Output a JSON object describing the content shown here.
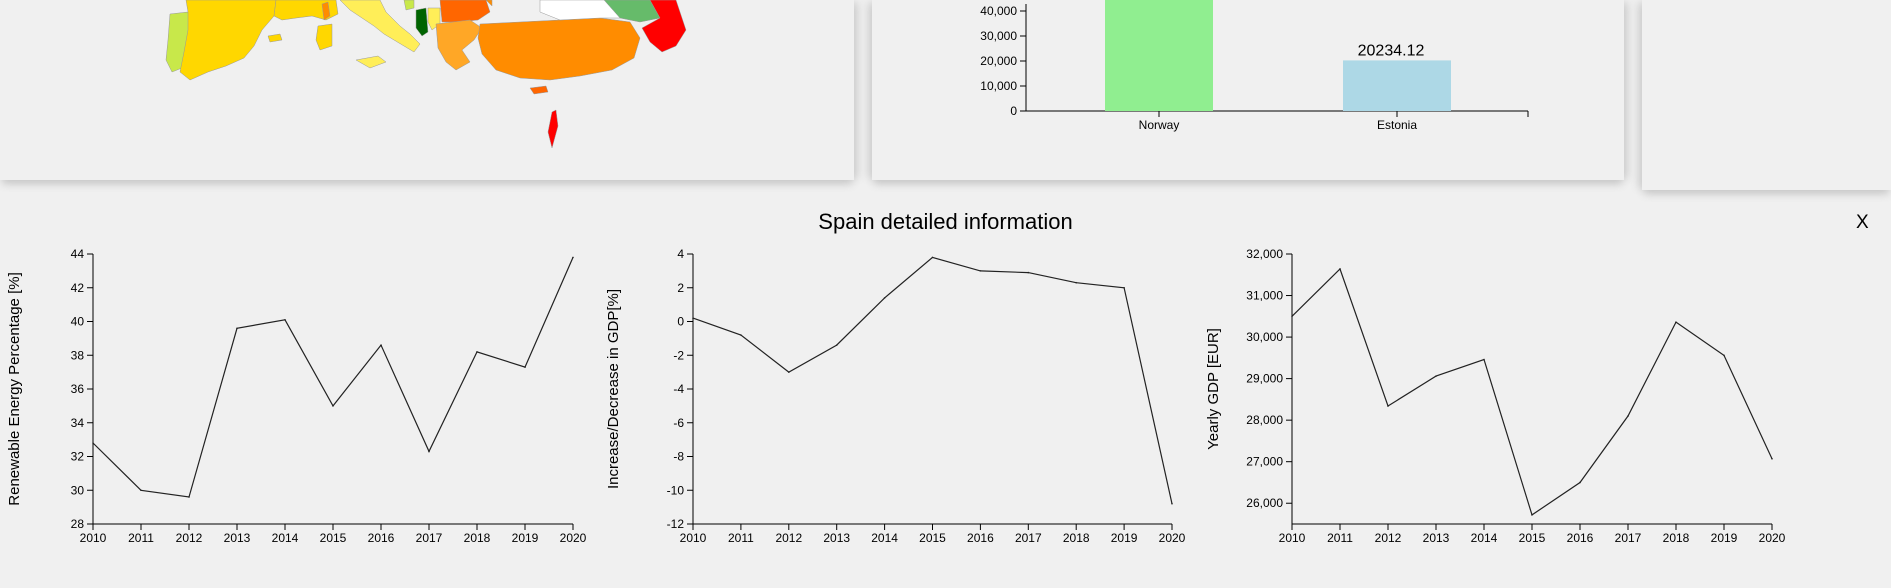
{
  "detail": {
    "title": "Spain detailed information",
    "close_label": "X"
  },
  "chart_data": [
    {
      "type": "bar",
      "categories": [
        "Norway",
        "Estonia"
      ],
      "values": [
        null,
        20234.12
      ],
      "data_labels": [
        "",
        "20234.12"
      ],
      "bar_colors": [
        "#90ee90",
        "#add8e6"
      ],
      "yticks": [
        0,
        10000,
        20000,
        30000,
        40000
      ],
      "ytick_labels": [
        "0",
        "10,000",
        "20,000",
        "30,000",
        "40,000"
      ],
      "xlabel": "",
      "ylabel": "",
      "title": ""
    },
    {
      "type": "line",
      "x": [
        2010,
        2011,
        2012,
        2013,
        2014,
        2015,
        2016,
        2017,
        2018,
        2019,
        2020
      ],
      "y": [
        32.8,
        30.0,
        29.6,
        39.6,
        40.1,
        35.0,
        38.6,
        32.3,
        38.2,
        37.3,
        43.8
      ],
      "ylim": [
        28,
        44
      ],
      "yticks": [
        28,
        30,
        32,
        34,
        36,
        38,
        40,
        42,
        44
      ],
      "ytick_labels": [
        "28",
        "30",
        "32",
        "34",
        "36",
        "38",
        "40",
        "42",
        "44"
      ],
      "xtick_labels": [
        "2010",
        "2011",
        "2012",
        "2013",
        "2014",
        "2015",
        "2016",
        "2017",
        "2018",
        "2019",
        "2020"
      ],
      "ylabel": "Renewable Energy Percentage [%]",
      "xlabel": "",
      "title": ""
    },
    {
      "type": "line",
      "x": [
        2010,
        2011,
        2012,
        2013,
        2014,
        2015,
        2016,
        2017,
        2018,
        2019,
        2020
      ],
      "y": [
        0.2,
        -0.8,
        -3.0,
        -1.4,
        1.4,
        3.8,
        3.0,
        2.9,
        2.3,
        2.0,
        -10.8
      ],
      "ylim": [
        -12,
        4
      ],
      "yticks": [
        -12,
        -10,
        -8,
        -6,
        -4,
        -2,
        0,
        2,
        4
      ],
      "ytick_labels": [
        "-12",
        "-10",
        "-8",
        "-6",
        "-4",
        "-2",
        "0",
        "2",
        "4"
      ],
      "xtick_labels": [
        "2010",
        "2011",
        "2012",
        "2013",
        "2014",
        "2015",
        "2016",
        "2017",
        "2018",
        "2019",
        "2020"
      ],
      "ylabel": "Increase/Decrease in GDP[%]",
      "xlabel": "",
      "title": ""
    },
    {
      "type": "line",
      "x": [
        2010,
        2011,
        2012,
        2013,
        2014,
        2015,
        2016,
        2017,
        2018,
        2019,
        2020
      ],
      "y": [
        30500,
        31640,
        28340,
        29060,
        29460,
        25720,
        26500,
        28100,
        30360,
        29560,
        27070
      ],
      "ylim": [
        25500,
        32000
      ],
      "yticks": [
        26000,
        27000,
        28000,
        29000,
        30000,
        31000,
        32000
      ],
      "ytick_labels": [
        "26,000",
        "27,000",
        "28,000",
        "29,000",
        "30,000",
        "31,000",
        "32,000"
      ],
      "xtick_labels": [
        "2010",
        "2011",
        "2012",
        "2013",
        "2014",
        "2015",
        "2016",
        "2017",
        "2018",
        "2019",
        "2020"
      ],
      "ylabel": "Yearly GDP [EUR]",
      "xlabel": "",
      "title": ""
    }
  ]
}
